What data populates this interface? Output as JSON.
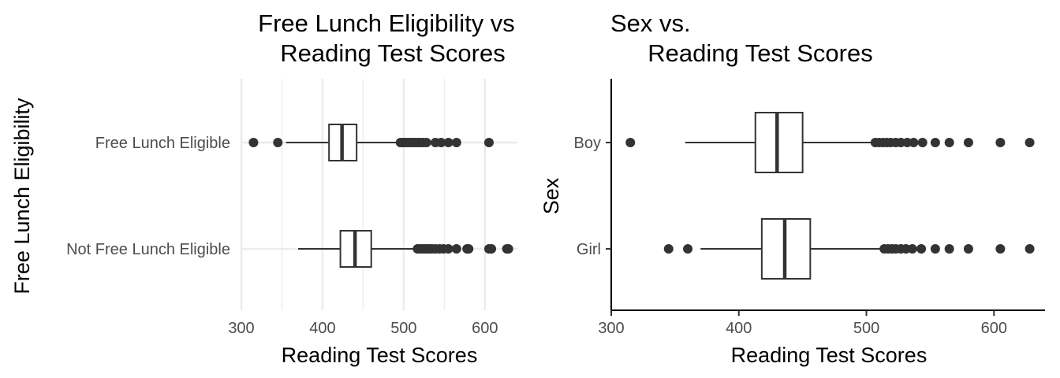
{
  "chart_data": [
    {
      "type": "boxplot",
      "orientation": "horizontal",
      "title_lines": [
        "Free Lunch Eligibility vs",
        "Reading Test Scores"
      ],
      "xlabel": "Reading Test Scores",
      "ylabel": "Free Lunch Eligibility",
      "xlim": [
        300,
        640
      ],
      "xticks": [
        300,
        400,
        500,
        600
      ],
      "grid": true,
      "theme": "minimal",
      "categories": [
        "Free Lunch Eligible",
        "Not Free Lunch Eligible"
      ],
      "boxes": [
        {
          "category": "Free Lunch Eligible",
          "whisker_low": 355,
          "q1": 408,
          "median": 424,
          "q3": 442,
          "whisker_high": 494,
          "outliers": [
            315,
            345,
            496,
            499,
            502,
            505,
            508,
            511,
            514,
            517,
            520,
            524,
            528,
            539,
            546,
            555,
            565,
            605
          ]
        },
        {
          "category": "Not Free Lunch Eligible",
          "whisker_low": 370,
          "q1": 422,
          "median": 440,
          "q3": 460,
          "whisker_high": 515,
          "outliers": [
            517,
            520,
            523,
            526,
            529,
            532,
            535,
            539,
            544,
            549,
            555,
            565,
            578,
            580,
            605,
            608,
            627,
            629
          ]
        }
      ]
    },
    {
      "type": "boxplot",
      "orientation": "horizontal",
      "title_lines": [
        "Sex vs.",
        "Reading Test Scores"
      ],
      "xlabel": "Reading Test Scores",
      "ylabel": "Sex",
      "xlim": [
        300,
        640
      ],
      "xticks": [
        300,
        400,
        500,
        600
      ],
      "grid": false,
      "theme": "classic",
      "categories": [
        "Boy",
        "Girl"
      ],
      "boxes": [
        {
          "category": "Boy",
          "whisker_low": 358,
          "q1": 413,
          "median": 430,
          "q3": 450,
          "whisker_high": 505,
          "outliers": [
            315,
            507,
            510,
            513,
            516,
            519,
            523,
            527,
            532,
            537,
            544,
            554,
            565,
            580,
            605,
            628
          ]
        },
        {
          "category": "Girl",
          "whisker_low": 370,
          "q1": 418,
          "median": 436,
          "q3": 456,
          "whisker_high": 512,
          "outliers": [
            345,
            360,
            514,
            517,
            520,
            523,
            527,
            531,
            536,
            543,
            554,
            565,
            580,
            605,
            628
          ]
        }
      ]
    }
  ]
}
